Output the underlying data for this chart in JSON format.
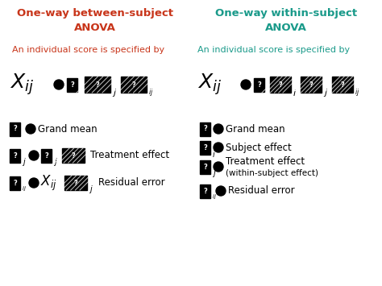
{
  "bg_color": "#ffffff",
  "left_title_line1": "One-way between-subject",
  "left_title_line2": "ANOVA",
  "right_title_line1": "One-way within-subject",
  "right_title_line2": "ANOVA",
  "left_color": "#c8351a",
  "right_color": "#1a9a8a",
  "subtitle_text": "An individual score is specified by",
  "figsize": [
    4.74,
    3.55
  ],
  "dpi": 100
}
